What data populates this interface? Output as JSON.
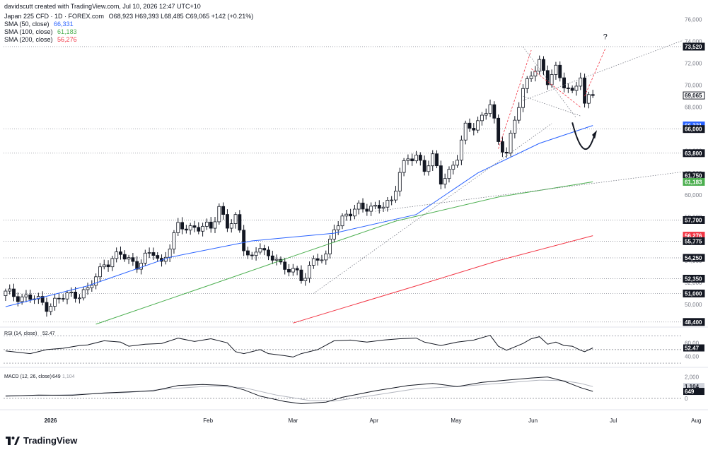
{
  "header": {
    "created": "davidscutt created with TradingView.com, Jul 10, 2026 12:47 UTC+10",
    "symbol_line": "Japan 225 CFD · 1D · FOREX.com",
    "ohlc": "O68,923 H69,393 L68,485 C69,065 +142 (+0.21%)",
    "sma50_label": "SMA (50, close)",
    "sma50_value": "66,331",
    "sma100_label": "SMA (100, close)",
    "sma100_value": "61,183",
    "sma200_label": "SMA (200, close)",
    "sma200_value": "56,276"
  },
  "footer": {
    "logo_text": "TradingView"
  },
  "colors": {
    "bull": "#ffffff",
    "bear": "#131722",
    "sma50": "#2962ff",
    "sma100": "#4caf50",
    "sma200": "#f23645",
    "rsi": "#131722",
    "macd": "#131722",
    "signal": "#b2b5be",
    "dotted": "#787b86"
  },
  "chart_data": [
    {
      "type": "candlestick",
      "title": "Japan 225 CFD · 1D · FOREX.com",
      "x_ticks": [
        "2026",
        "Feb",
        "Mar",
        "Apr",
        "May",
        "Jun",
        "Jul",
        "Aug"
      ],
      "y_ticks": [
        "76,000",
        "74,000",
        "72,000",
        "70,000",
        "68,000",
        "66,000",
        "64,000",
        "62,000",
        "60,000",
        "58,000",
        "56,000",
        "54,000",
        "52,000",
        "50,000"
      ],
      "ylim": [
        48000,
        77000
      ],
      "trading_days": 165,
      "axis_labels": [
        {
          "text": "73,520",
          "value": 73520,
          "bg": "#131722",
          "fg": "#ffffff"
        },
        {
          "text": "69,065",
          "value": 69065,
          "bg": "#ffffff",
          "fg": "#131722"
        },
        {
          "text": "66,331",
          "value": 66331,
          "bg": "#2962ff",
          "fg": "#ffffff"
        },
        {
          "text": "66,000",
          "value": 66000,
          "bg": "#131722",
          "fg": "#ffffff"
        },
        {
          "text": "63,800",
          "value": 63800,
          "bg": "#131722",
          "fg": "#ffffff"
        },
        {
          "text": "61,750",
          "value": 61750,
          "bg": "#131722",
          "fg": "#ffffff"
        },
        {
          "text": "61,183",
          "value": 61183,
          "bg": "#4caf50",
          "fg": "#ffffff"
        },
        {
          "text": "57,700",
          "value": 57700,
          "bg": "#131722",
          "fg": "#ffffff"
        },
        {
          "text": "56,276",
          "value": 56276,
          "bg": "#f23645",
          "fg": "#ffffff"
        },
        {
          "text": "55,775",
          "value": 55775,
          "bg": "#131722",
          "fg": "#ffffff"
        },
        {
          "text": "54,250",
          "value": 54250,
          "bg": "#131722",
          "fg": "#ffffff"
        },
        {
          "text": "52,350",
          "value": 52350,
          "bg": "#131722",
          "fg": "#ffffff"
        },
        {
          "text": "51,000",
          "value": 51000,
          "bg": "#131722",
          "fg": "#ffffff"
        },
        {
          "text": "48,400",
          "value": 48400,
          "bg": "#131722",
          "fg": "#ffffff"
        }
      ],
      "horizontal_levels": [
        73520,
        66000,
        63800,
        57700,
        55775,
        54250,
        52350,
        51000,
        48400
      ],
      "annotation": "?",
      "close_path": [
        [
          0,
          51000
        ],
        [
          7,
          50500
        ],
        [
          10,
          49900
        ],
        [
          15,
          50800
        ],
        [
          20,
          51200
        ],
        [
          24,
          53800
        ],
        [
          28,
          54500
        ],
        [
          32,
          53700
        ],
        [
          36,
          54700
        ],
        [
          38,
          53800
        ],
        [
          42,
          57000
        ],
        [
          46,
          57100
        ],
        [
          50,
          56900
        ],
        [
          52,
          59000
        ],
        [
          54,
          57200
        ],
        [
          56,
          57700
        ],
        [
          58,
          55300
        ],
        [
          60,
          54300
        ],
        [
          62,
          55300
        ],
        [
          64,
          54000
        ],
        [
          66,
          54600
        ],
        [
          68,
          53000
        ],
        [
          70,
          53200
        ],
        [
          72,
          52200
        ],
        [
          74,
          53700
        ],
        [
          76,
          54000
        ],
        [
          78,
          54300
        ],
        [
          80,
          57300
        ],
        [
          84,
          58200
        ],
        [
          86,
          59000
        ],
        [
          88,
          59000
        ],
        [
          90,
          58600
        ],
        [
          92,
          59000
        ],
        [
          94,
          59600
        ],
        [
          96,
          62100
        ],
        [
          98,
          63100
        ],
        [
          100,
          63600
        ],
        [
          102,
          62500
        ],
        [
          104,
          63300
        ],
        [
          106,
          61200
        ],
        [
          108,
          62200
        ],
        [
          110,
          63500
        ],
        [
          112,
          66000
        ],
        [
          114,
          66300
        ],
        [
          116,
          67200
        ],
        [
          118,
          68200
        ],
        [
          120,
          64700
        ],
        [
          122,
          64000
        ],
        [
          124,
          66900
        ],
        [
          126,
          69300
        ],
        [
          128,
          71200
        ],
        [
          130,
          72200
        ],
        [
          132,
          70200
        ],
        [
          134,
          71400
        ],
        [
          136,
          70300
        ],
        [
          138,
          69200
        ],
        [
          140,
          70700
        ],
        [
          141,
          68000
        ],
        [
          142,
          69100
        ],
        [
          143,
          69065
        ]
      ],
      "sma50": [
        [
          0,
          49800
        ],
        [
          20,
          51700
        ],
        [
          40,
          54300
        ],
        [
          60,
          55800
        ],
        [
          80,
          56500
        ],
        [
          100,
          58200
        ],
        [
          115,
          62000
        ],
        [
          130,
          64700
        ],
        [
          143,
          66331
        ]
      ],
      "sma100": [
        [
          22,
          48200
        ],
        [
          50,
          51800
        ],
        [
          70,
          54400
        ],
        [
          95,
          57600
        ],
        [
          120,
          59800
        ],
        [
          143,
          61183
        ]
      ],
      "sma200": [
        [
          70,
          48300
        ],
        [
          100,
          51700
        ],
        [
          120,
          54000
        ],
        [
          143,
          56276
        ]
      ]
    },
    {
      "type": "line",
      "title": "RSI (14, close)",
      "value_label": "52.47",
      "y_ticks": [
        "60.00",
        "52.47",
        "40.00"
      ],
      "levels": [
        70,
        50,
        30
      ],
      "ylim": [
        28,
        78
      ],
      "values": [
        [
          0,
          48
        ],
        [
          6,
          44
        ],
        [
          10,
          50
        ],
        [
          14,
          52
        ],
        [
          18,
          56
        ],
        [
          20,
          57
        ],
        [
          24,
          63
        ],
        [
          28,
          61
        ],
        [
          30,
          55
        ],
        [
          34,
          58
        ],
        [
          38,
          59
        ],
        [
          42,
          67
        ],
        [
          46,
          62
        ],
        [
          50,
          66
        ],
        [
          54,
          60
        ],
        [
          56,
          47
        ],
        [
          58,
          44
        ],
        [
          62,
          50
        ],
        [
          64,
          44
        ],
        [
          68,
          41
        ],
        [
          70,
          39
        ],
        [
          72,
          44
        ],
        [
          76,
          50
        ],
        [
          80,
          63
        ],
        [
          84,
          64
        ],
        [
          88,
          61
        ],
        [
          92,
          64
        ],
        [
          96,
          66
        ],
        [
          100,
          67
        ],
        [
          102,
          61
        ],
        [
          106,
          56
        ],
        [
          110,
          61
        ],
        [
          114,
          64
        ],
        [
          118,
          71
        ],
        [
          120,
          55
        ],
        [
          122,
          49
        ],
        [
          126,
          59
        ],
        [
          128,
          66
        ],
        [
          130,
          69
        ],
        [
          132,
          58
        ],
        [
          134,
          61
        ],
        [
          136,
          56
        ],
        [
          138,
          55
        ],
        [
          140,
          49
        ],
        [
          141,
          47
        ],
        [
          143,
          52.47
        ]
      ]
    },
    {
      "type": "line",
      "title": "MACD (12, 26, close)",
      "macd_label": "649",
      "signal_label": "1,104",
      "y_ticks": [
        "2,000",
        "1,104",
        "649",
        "0"
      ],
      "ylim": [
        -800,
        2500
      ],
      "macd": [
        [
          0,
          200
        ],
        [
          8,
          300
        ],
        [
          16,
          280
        ],
        [
          24,
          500
        ],
        [
          30,
          600
        ],
        [
          36,
          700
        ],
        [
          42,
          1200
        ],
        [
          48,
          1300
        ],
        [
          54,
          1200
        ],
        [
          58,
          800
        ],
        [
          62,
          200
        ],
        [
          68,
          -300
        ],
        [
          72,
          -500
        ],
        [
          78,
          -350
        ],
        [
          82,
          100
        ],
        [
          90,
          700
        ],
        [
          98,
          1200
        ],
        [
          104,
          1400
        ],
        [
          110,
          1100
        ],
        [
          116,
          1500
        ],
        [
          122,
          1700
        ],
        [
          128,
          1900
        ],
        [
          132,
          2000
        ],
        [
          136,
          1600
        ],
        [
          140,
          1000
        ],
        [
          143,
          649
        ]
      ],
      "signal": [
        [
          0,
          250
        ],
        [
          10,
          270
        ],
        [
          20,
          400
        ],
        [
          30,
          550
        ],
        [
          40,
          900
        ],
        [
          50,
          1150
        ],
        [
          58,
          1000
        ],
        [
          66,
          300
        ],
        [
          74,
          -200
        ],
        [
          80,
          -250
        ],
        [
          90,
          300
        ],
        [
          100,
          900
        ],
        [
          110,
          1100
        ],
        [
          120,
          1400
        ],
        [
          130,
          1700
        ],
        [
          136,
          1650
        ],
        [
          140,
          1400
        ],
        [
          143,
          1104
        ]
      ]
    }
  ]
}
